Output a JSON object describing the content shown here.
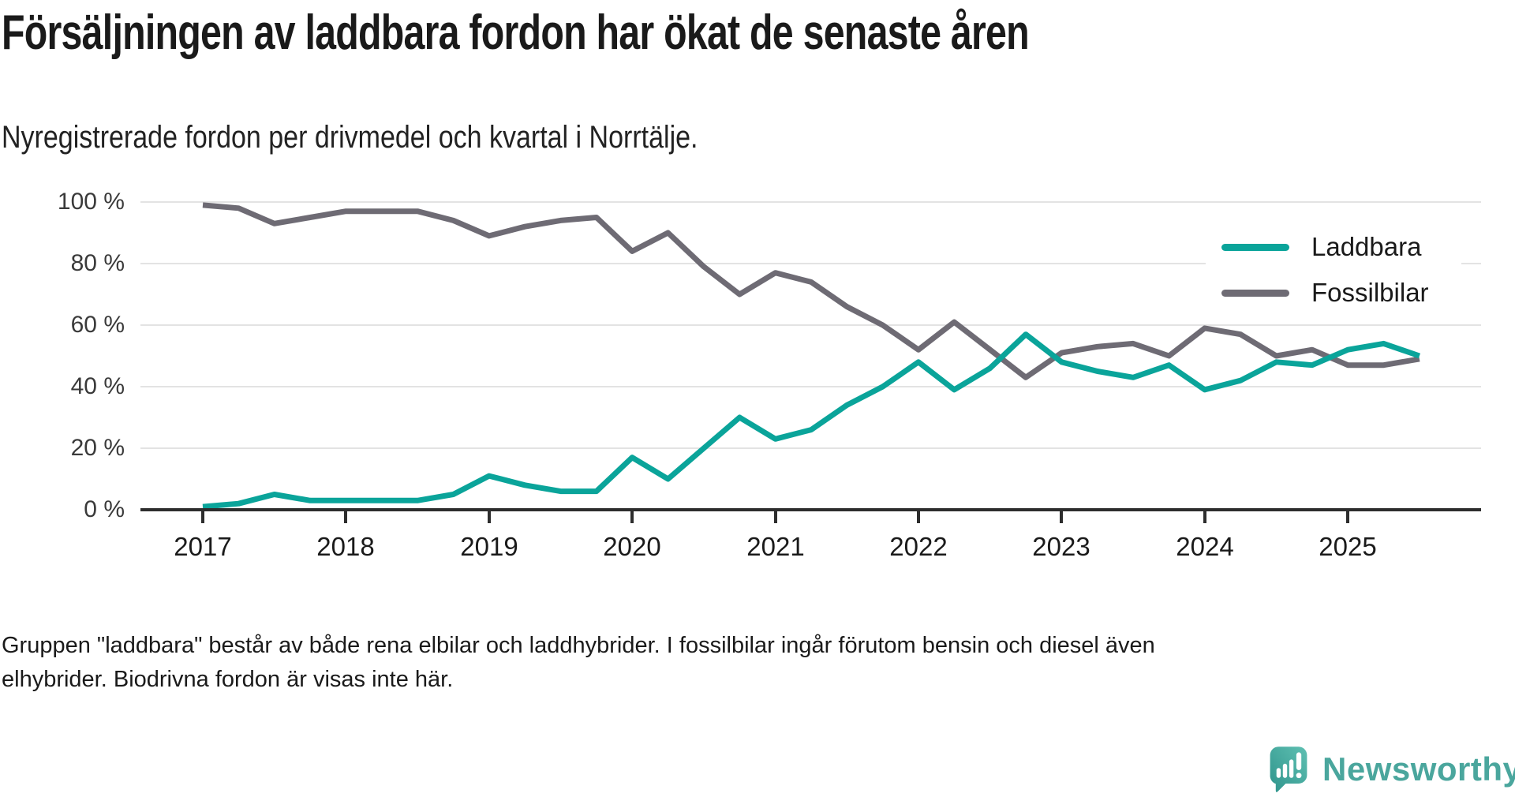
{
  "chart_data": {
    "type": "line",
    "title": "Försäljningen av laddbara fordon har ökat de senaste åren",
    "subtitle": "Nyregistrerade fordon per drivmedel och kvartal i Norrtälje.",
    "xlabel": "",
    "ylabel": "",
    "ylim": [
      0,
      100
    ],
    "grid": "horizontal",
    "legend_position": "inside-right",
    "categories": [
      "2017 Q1",
      "2017 Q2",
      "2017 Q3",
      "2017 Q4",
      "2018 Q1",
      "2018 Q2",
      "2018 Q3",
      "2018 Q4",
      "2019 Q1",
      "2019 Q2",
      "2019 Q3",
      "2019 Q4",
      "2020 Q1",
      "2020 Q2",
      "2020 Q3",
      "2020 Q4",
      "2021 Q1",
      "2021 Q2",
      "2021 Q3",
      "2021 Q4",
      "2022 Q1",
      "2022 Q2",
      "2022 Q3",
      "2022 Q4",
      "2023 Q1",
      "2023 Q2",
      "2023 Q3",
      "2023 Q4",
      "2024 Q1",
      "2024 Q2",
      "2024 Q3",
      "2024 Q4",
      "2025 Q1",
      "2025 Q2",
      "2025 Q3"
    ],
    "series": [
      {
        "name": "Laddbara",
        "color": "#0aa49a",
        "values": [
          1,
          2,
          5,
          3,
          3,
          3,
          3,
          5,
          11,
          8,
          6,
          6,
          17,
          10,
          20,
          30,
          23,
          26,
          34,
          40,
          48,
          39,
          46,
          57,
          48,
          45,
          43,
          47,
          39,
          42,
          48,
          47,
          52,
          54,
          50
        ]
      },
      {
        "name": "Fossilbilar",
        "color": "#6e6b74",
        "values": [
          99,
          98,
          93,
          95,
          97,
          97,
          97,
          94,
          89,
          92,
          94,
          95,
          84,
          90,
          79,
          70,
          77,
          74,
          66,
          60,
          52,
          61,
          52,
          43,
          51,
          53,
          54,
          50,
          59,
          57,
          50,
          52,
          47,
          47,
          49
        ]
      }
    ],
    "y_tick_labels": [
      "100 %",
      "80 %",
      "60 %",
      "40 %",
      "20 %",
      "0 %"
    ],
    "y_tick_values": [
      100,
      80,
      60,
      40,
      20,
      0
    ],
    "x_tick_labels": [
      "2017",
      "2018",
      "2019",
      "2020",
      "2021",
      "2022",
      "2023",
      "2024",
      "2025"
    ]
  },
  "legend": {
    "items": [
      {
        "label": "Laddbara",
        "color": "#0aa49a"
      },
      {
        "label": "Fossilbilar",
        "color": "#6e6b74"
      }
    ]
  },
  "footer": {
    "note_line1": "Gruppen \"laddbara\" består av både rena elbilar och laddhybrider. I fossilbilar ingår förutom bensin och diesel även",
    "note_line2": "elhybrider. Biodrivna fordon är visas inte här.",
    "brand": "Newsworthy"
  }
}
